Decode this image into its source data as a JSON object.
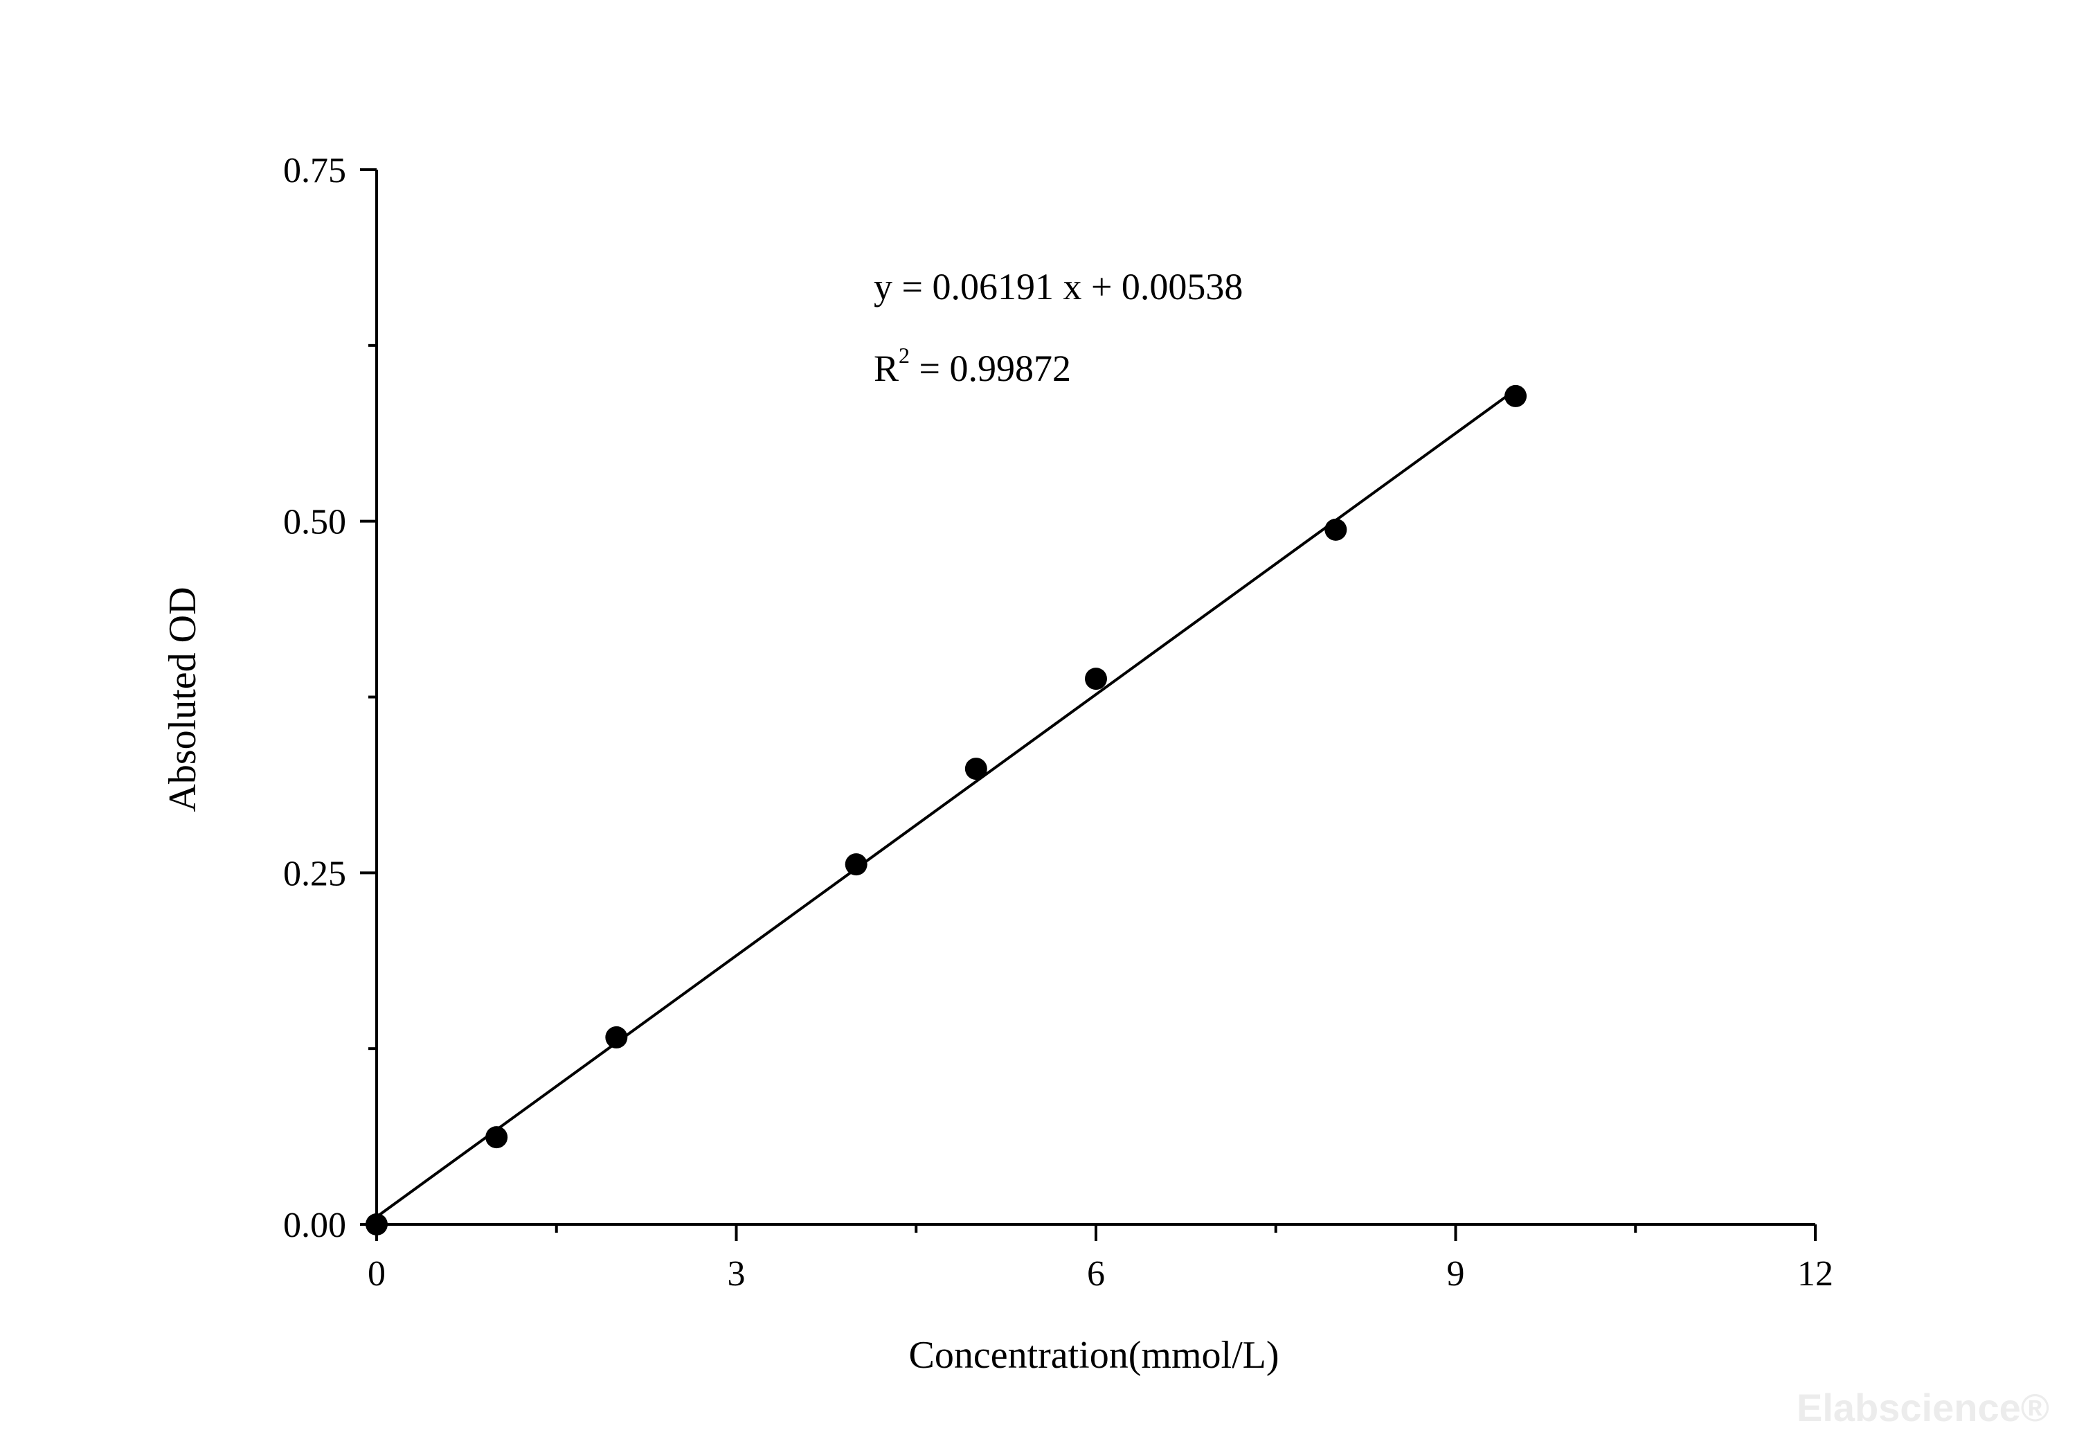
{
  "chart_data": {
    "type": "scatter",
    "xlabel": "Concentration(mmol/L)",
    "ylabel": "Absoluted OD",
    "xlim": [
      0,
      12
    ],
    "ylim": [
      0,
      0.75
    ],
    "x_ticks": [
      0,
      3,
      6,
      9,
      12
    ],
    "x_tick_labels": [
      "0",
      "3",
      "6",
      "9",
      "12"
    ],
    "x_minor_ticks": [
      1.5,
      4.5,
      7.5,
      10.5
    ],
    "y_ticks": [
      0,
      0.25,
      0.5,
      0.75
    ],
    "y_tick_labels": [
      "0.00",
      "0.25",
      "0.50",
      "0.75"
    ],
    "y_minor_ticks": [
      0.125,
      0.375,
      0.625
    ],
    "grid": false,
    "series": [
      {
        "x": [
          0,
          1,
          2,
          4,
          5,
          6,
          8,
          9.5
        ],
        "y": [
          0.0,
          0.062,
          0.133,
          0.256,
          0.324,
          0.388,
          0.494,
          0.589
        ],
        "marker": "filled-circle",
        "color": "#000000"
      }
    ],
    "fit": {
      "slope": 0.06191,
      "intercept": 0.00538,
      "x_range": [
        0,
        9.5
      ],
      "equation_text": "y = 0.06191 x + 0.00538",
      "r2_prefix": "R",
      "r2_superscript": "2",
      "r2_value_text": " = 0.99872"
    },
    "watermark": "Elabscience®"
  }
}
